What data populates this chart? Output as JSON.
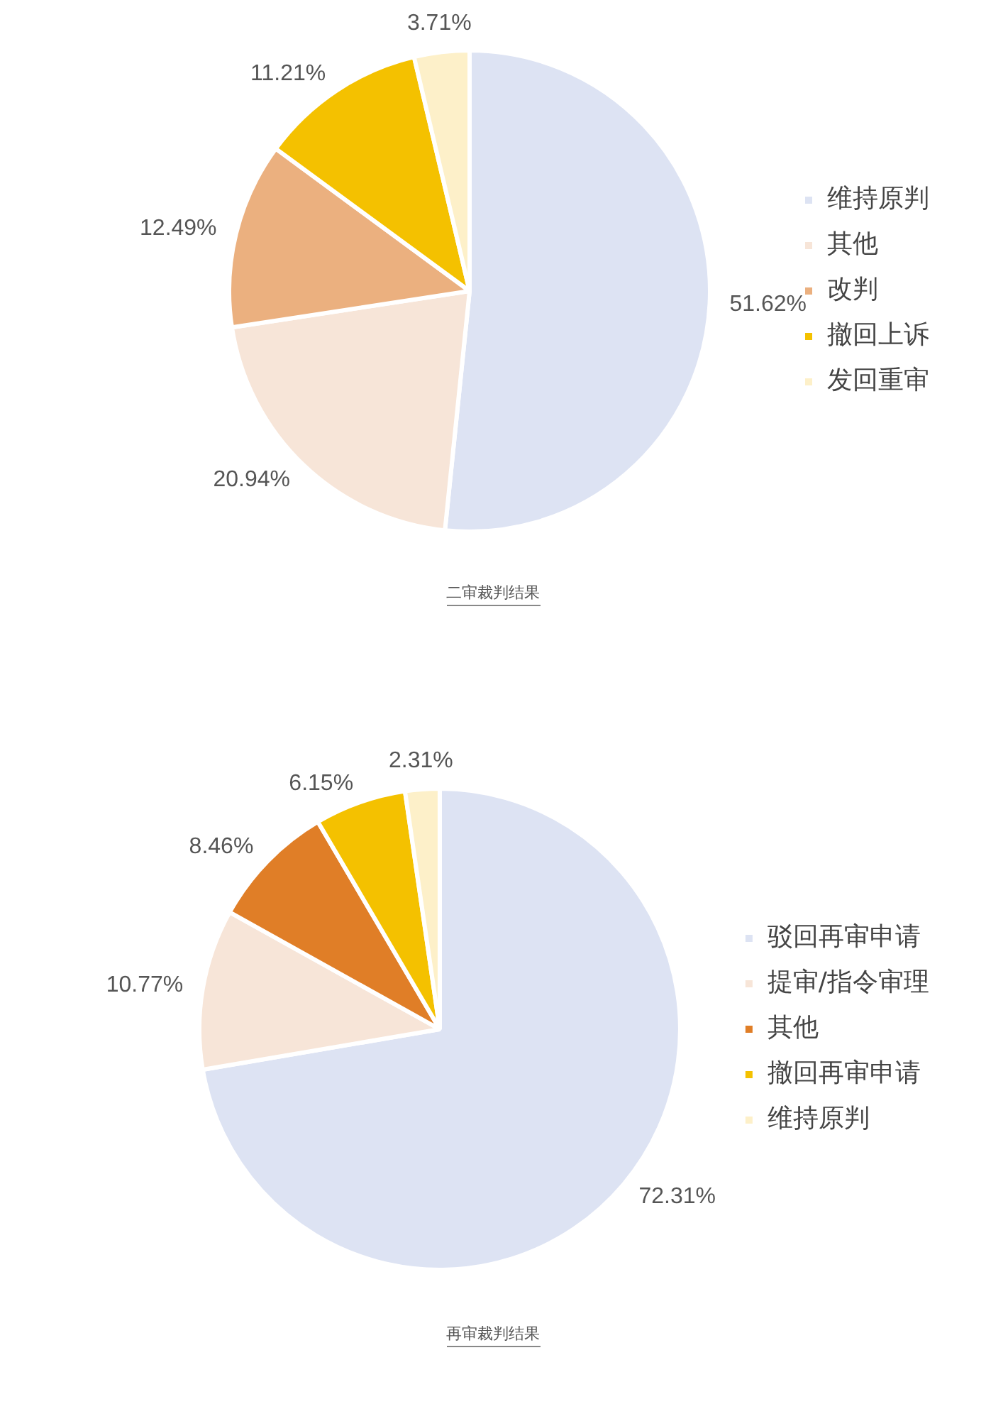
{
  "chart_data": [
    {
      "type": "pie",
      "title": "二审裁判结果",
      "categories": [
        "维持原判",
        "其他",
        "改判",
        "撤回上诉",
        "发回重审"
      ],
      "values": [
        51.62,
        20.94,
        12.49,
        11.21,
        3.71
      ],
      "value_labels": [
        "51.62%",
        "20.94%",
        "12.49%",
        "11.21%",
        "3.71%"
      ],
      "colors": [
        "#dde3f3",
        "#f7e5d8",
        "#ebb07f",
        "#f4c100",
        "#fdf0c9"
      ],
      "legend": "right"
    },
    {
      "type": "pie",
      "title": "再审裁判结果",
      "categories": [
        "驳回再审申请",
        "提审/指令审理",
        "其他",
        "撤回再审申请",
        "维持原判"
      ],
      "values": [
        72.31,
        10.77,
        8.46,
        6.15,
        2.31
      ],
      "value_labels": [
        "72.31%",
        "10.77%",
        "8.46%",
        "6.15%",
        "2.31%"
      ],
      "colors": [
        "#dde3f3",
        "#f7e5d8",
        "#e07e27",
        "#f4c100",
        "#fdf0c9"
      ],
      "legend": "right"
    }
  ]
}
